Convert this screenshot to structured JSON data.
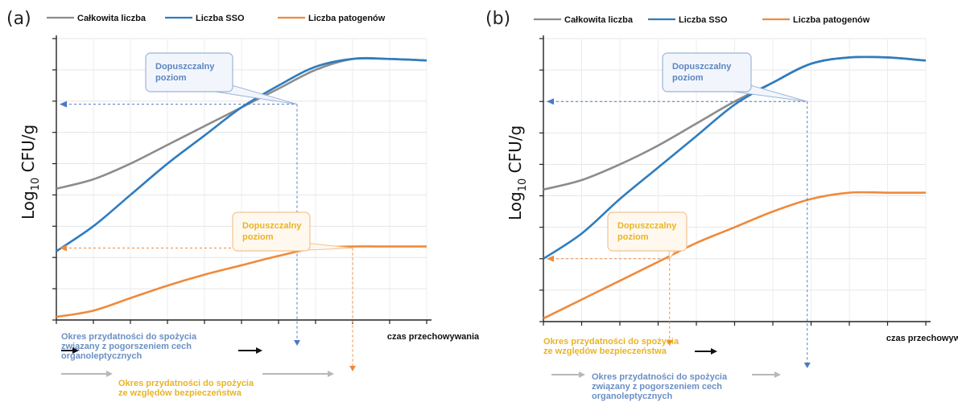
{
  "legend": {
    "total": "Całkowita liczba",
    "sso": "Liczba SSO",
    "pathogens": "Liczba patogenów"
  },
  "axes": {
    "ylabel_main": "Log",
    "ylabel_sub": "10",
    "ylabel_rest": " CFU/g",
    "xlabel": "czas przechowywania"
  },
  "colors": {
    "total": "#8c8c8c",
    "sso": "#2e7cc0",
    "pathogens": "#ef8a3c",
    "blue_box": "#5b86c0",
    "orange_box": "#e8b424"
  },
  "chart_data": [
    {
      "type": "line",
      "panel_label": "(a)",
      "xlabel": "czas przechowywania",
      "ylabel": "Log10 CFU/g",
      "xlim": [
        0,
        10
      ],
      "ylim": [
        0,
        9
      ],
      "grid": true,
      "legend_position": "top",
      "series": [
        {
          "name": "Całkowita liczba",
          "x": [
            0,
            1,
            2,
            3,
            4,
            5,
            6,
            7,
            8,
            9,
            10
          ],
          "y": [
            4.2,
            4.5,
            5.0,
            5.6,
            6.2,
            6.8,
            7.4,
            8.0,
            8.35,
            8.35,
            8.3
          ]
        },
        {
          "name": "Liczba SSO",
          "x": [
            0,
            1,
            2,
            3,
            4,
            5,
            6,
            7,
            8,
            9,
            10
          ],
          "y": [
            2.2,
            3.0,
            4.0,
            5.0,
            5.9,
            6.8,
            7.5,
            8.1,
            8.35,
            8.35,
            8.3
          ]
        },
        {
          "name": "Liczba patogenów",
          "x": [
            0,
            1,
            2,
            3,
            4,
            5,
            6,
            7,
            8,
            9,
            10
          ],
          "y": [
            0.1,
            0.3,
            0.7,
            1.1,
            1.45,
            1.75,
            2.05,
            2.3,
            2.35,
            2.35,
            2.35
          ]
        }
      ],
      "annotations": [
        {
          "id": "sso-threshold",
          "text": "Dopuszczalny poziom",
          "x": 6.5,
          "y": 6.9
        },
        {
          "id": "pathogen-threshold",
          "text": "Dopuszczalny poziom",
          "x": 8.0,
          "y": 2.3
        }
      ],
      "notes": {
        "sensory": [
          "Okres przydatności do spożycia",
          "związany z pogorszeniem cech",
          "organoleptycznych"
        ],
        "safety": [
          "Okres przydatności do spożycia",
          "ze względów bezpieczeństwa"
        ]
      }
    },
    {
      "type": "line",
      "panel_label": "(b)",
      "xlabel": "czas przechowywania",
      "ylabel": "Log10 CFU/g",
      "xlim": [
        0,
        10
      ],
      "ylim": [
        0,
        9
      ],
      "grid": true,
      "legend_position": "top",
      "series": [
        {
          "name": "Całkowita liczba",
          "x": [
            0,
            1,
            2,
            3,
            4,
            5,
            6,
            7,
            8,
            9,
            10
          ],
          "y": [
            4.2,
            4.5,
            5.0,
            5.6,
            6.3,
            7.0,
            7.6,
            8.2,
            8.4,
            8.4,
            8.3
          ]
        },
        {
          "name": "Liczba SSO",
          "x": [
            0,
            1,
            2,
            3,
            4,
            5,
            6,
            7,
            8,
            9,
            10
          ],
          "y": [
            2.0,
            2.8,
            3.9,
            4.9,
            5.9,
            6.9,
            7.6,
            8.2,
            8.4,
            8.4,
            8.3
          ]
        },
        {
          "name": "Liczba patogenów",
          "x": [
            0,
            1,
            2,
            3,
            4,
            5,
            6,
            7,
            8,
            9,
            10
          ],
          "y": [
            0.1,
            0.7,
            1.3,
            1.9,
            2.5,
            3.0,
            3.5,
            3.9,
            4.1,
            4.1,
            4.1
          ]
        }
      ],
      "annotations": [
        {
          "id": "sso-threshold",
          "text": "Dopuszczalny poziom",
          "x": 6.9,
          "y": 7.0
        },
        {
          "id": "pathogen-threshold",
          "text": "Dopuszczalny poziom",
          "x": 3.3,
          "y": 2.0
        }
      ],
      "notes": {
        "safety": [
          "Okres przydatności do spożycia",
          "ze względów bezpieczeństwa"
        ],
        "sensory": [
          "Okres przydatności do spożycia",
          "związany z pogorszeniem cech",
          "organoleptycznych"
        ]
      }
    }
  ],
  "box_text": [
    "Dopuszczalny",
    "poziom"
  ]
}
